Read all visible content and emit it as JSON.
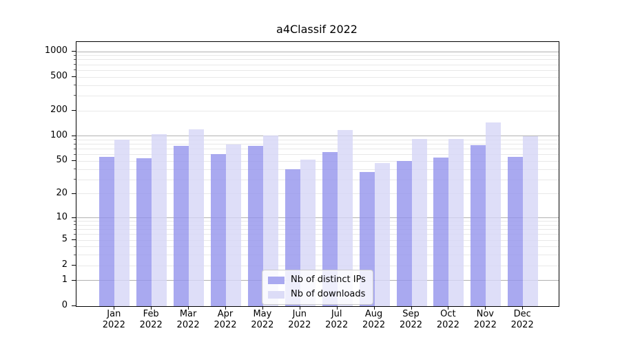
{
  "chart_data": {
    "type": "bar",
    "title": "a4Classif 2022",
    "categories": [
      "Jan",
      "Feb",
      "Mar",
      "Apr",
      "May",
      "Jun",
      "Jul",
      "Aug",
      "Sep",
      "Oct",
      "Nov",
      "Dec"
    ],
    "category_year": "2022",
    "series": [
      {
        "name": "Nb of distinct IPs",
        "color": "#a9a9f0",
        "fill": "#9494ec",
        "values": [
          57,
          54,
          77,
          61,
          77,
          40,
          64,
          37,
          50,
          56,
          78,
          57
        ]
      },
      {
        "name": "Nb of downloads",
        "color": "#dcdcf7",
        "fill": "#d6d6f6",
        "values": [
          90,
          105,
          120,
          80,
          102,
          52,
          118,
          48,
          93,
          92,
          145,
          100
        ]
      }
    ],
    "bar_alpha": 0.8,
    "y_scale": "log1p",
    "y_axis": {
      "major_ticks": [
        0,
        1,
        2,
        5,
        10,
        20,
        50,
        100,
        200,
        500,
        1000
      ],
      "decade_gridlines": [
        1,
        10,
        100,
        1000
      ],
      "minor_gridlines": [
        2,
        3,
        4,
        5,
        6,
        7,
        8,
        9,
        20,
        30,
        40,
        50,
        60,
        70,
        80,
        90,
        200,
        300,
        400,
        500,
        600,
        700,
        800,
        900
      ],
      "top_value": 1300,
      "bottom_value": 0
    },
    "grid": true,
    "legend": {
      "position": "lower-center"
    },
    "colors": {
      "major_grid": "#b0b0b0",
      "minor_grid": "#e8e8e8",
      "axis": "#000000",
      "background": "#ffffff"
    }
  }
}
